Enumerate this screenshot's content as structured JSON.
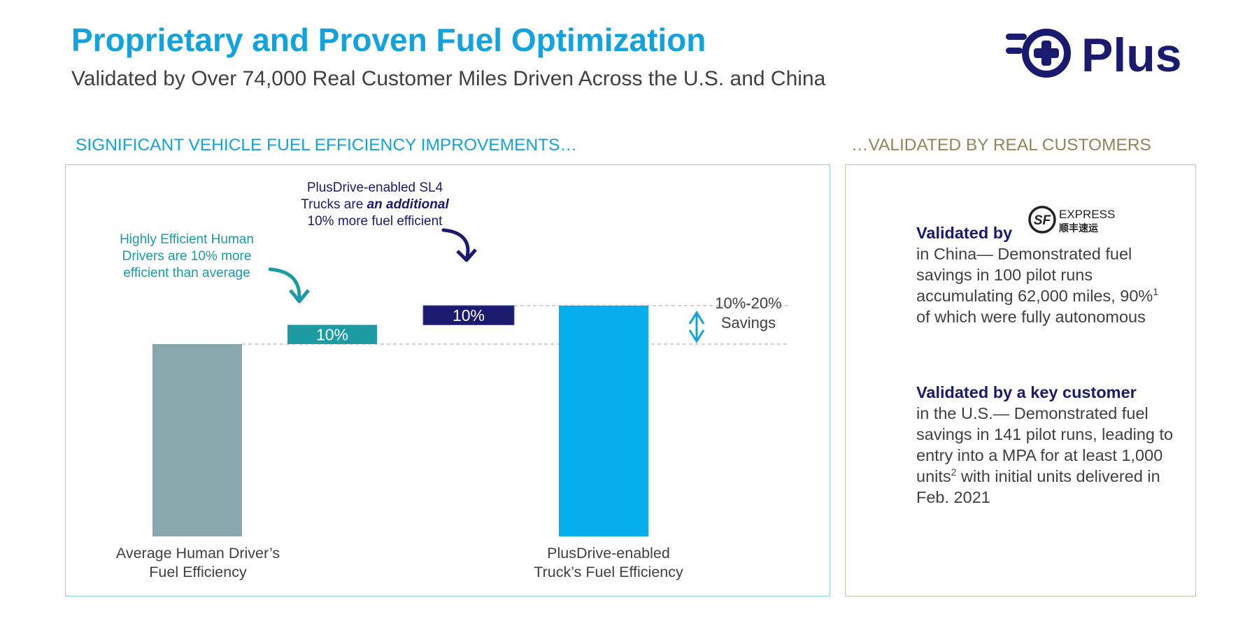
{
  "header": {
    "title": "Proprietary and Proven Fuel Optimization",
    "subtitle": "Validated by Over 74,000 Real Customer Miles Driven Across the U.S. and China",
    "logo_text": "Plus"
  },
  "sections": {
    "left_heading": "SIGNIFICANT VEHICLE FUEL EFFICIENCY IMPROVEMENTS…",
    "right_heading": "…VALIDATED BY REAL CUSTOMERS"
  },
  "colors": {
    "title": "#12a2dc",
    "human_bar": "#88a8ae",
    "human_increment": "#1c9ba3",
    "plus_increment": "#1a1a6e",
    "plus_bar": "#07aeed",
    "right_heading": "#8f8759",
    "logo": "#1a1a6e"
  },
  "annotations": {
    "human_note": "Highly Efficient Human\nDrivers are 10% more\nefficient than average",
    "plus_note_line1": "PlusDrive-enabled SL4",
    "plus_note_line2_pre": "Trucks are ",
    "plus_note_line2_em": "an additional",
    "plus_note_line3": "10% more fuel efficient",
    "savings": "10%-20%\nSavings"
  },
  "chart_data": {
    "type": "bar",
    "subtype": "waterfall",
    "categories": [
      "Average Human Driver’s\nFuel Efficiency",
      "Highly Efficient Human Drivers",
      "PlusDrive-enabled SL4 Trucks",
      "PlusDrive-enabled\nTruck’s Fuel Efficiency"
    ],
    "bars": [
      {
        "kind": "total",
        "base": 0,
        "value": 100,
        "label": "",
        "color": "#88a8ae"
      },
      {
        "kind": "increment",
        "base": 100,
        "value": 10,
        "label": "10%",
        "color": "#1c9ba3"
      },
      {
        "kind": "increment",
        "base": 110,
        "value": 10,
        "label": "10%",
        "color": "#1a1a6e"
      },
      {
        "kind": "total",
        "base": 0,
        "value": 120,
        "label": "",
        "color": "#07aeed"
      }
    ],
    "savings_range": "10%-20%",
    "grid": false
  },
  "validation": {
    "china": {
      "lead": "Validated by",
      "partner_logo_text": "EXPRESS",
      "partner_logo_cn": "顺丰速运",
      "partner_logo_mark": "SF",
      "body_1": "in China— Demonstrated fuel savings in 100 pilot runs accumulating 62,000 miles, 90%",
      "footnote": "1",
      "body_2": " of which were fully autonomous"
    },
    "us": {
      "lead": "Validated by a key customer",
      "body_1": "in the U.S.— Demonstrated fuel savings in 141 pilot runs, leading to entry into a MPA for at least 1,000 units",
      "footnote": "2",
      "body_2": " with initial units delivered in Feb. 2021"
    }
  }
}
